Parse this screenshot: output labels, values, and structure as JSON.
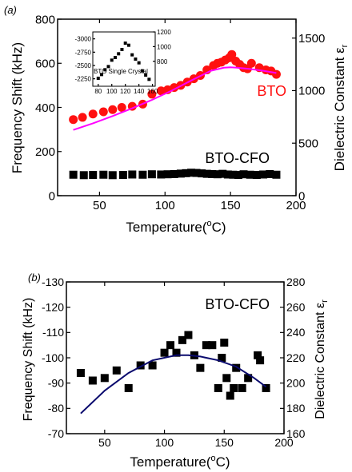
{
  "chart_data": [
    {
      "type": "scatter",
      "panel_label": "(a)",
      "xlabel": "Temperature(°C)",
      "ylabel": "Frequency Shift (kHz)",
      "ylabel_right": "Dielectric Constant ε",
      "ylabel_right_sub": "r",
      "xlim": [
        18,
        200
      ],
      "ylim": [
        0,
        800
      ],
      "ylim_right": [
        0,
        1680
      ],
      "x_ticks": [
        50,
        100,
        150,
        200
      ],
      "y_ticks": [
        0,
        200,
        400,
        600,
        800
      ],
      "y_ticks_right": [
        0,
        500,
        1000,
        1500
      ],
      "annotations": [
        "BTO",
        "BTO-CFO"
      ],
      "series": [
        {
          "name": "BTO",
          "marker": "circle",
          "color": "#ff1010",
          "x": [
            30,
            37,
            45,
            53,
            60,
            67,
            75,
            83,
            90,
            97,
            102,
            107,
            112,
            117,
            122,
            127,
            132,
            137,
            140,
            143,
            146,
            149,
            151,
            154,
            157,
            160,
            163,
            166,
            172,
            177,
            181,
            185
          ],
          "y": [
            345,
            355,
            370,
            380,
            390,
            400,
            405,
            415,
            460,
            475,
            480,
            490,
            500,
            515,
            530,
            545,
            570,
            590,
            600,
            605,
            615,
            625,
            640,
            610,
            595,
            580,
            575,
            600,
            580,
            570,
            565,
            550
          ]
        },
        {
          "name": "BTO fit",
          "color": "#ff00ff",
          "x": [
            30,
            45,
            60,
            75,
            90,
            105,
            120,
            135,
            145,
            150,
            155,
            165,
            175,
            185
          ],
          "y": [
            298,
            328,
            361,
            396,
            434,
            476,
            522,
            566,
            580,
            582,
            580,
            574,
            566,
            556
          ]
        },
        {
          "name": "BTO-CFO",
          "marker": "square",
          "color": "#000000",
          "x": [
            30,
            38,
            45,
            53,
            60,
            68,
            75,
            83,
            90,
            97,
            102,
            107,
            112,
            116,
            120,
            124,
            128,
            132,
            136,
            140,
            144,
            148,
            152,
            156,
            160,
            165,
            170,
            175,
            180,
            185
          ],
          "y": [
            95,
            93,
            94,
            95,
            93,
            94,
            96,
            95,
            97,
            96,
            97,
            98,
            100,
            102,
            104,
            103,
            101,
            99,
            98,
            97,
            99,
            96,
            95,
            94,
            97,
            95,
            94,
            96,
            98,
            95
          ]
        }
      ],
      "inset": {
        "type": "scatter",
        "annotation": "BTO Single Crystal",
        "xlim": [
          72,
          164
        ],
        "ylim": [
          -2110,
          -3130
        ],
        "ylim_right": [
          460,
          1200
        ],
        "x_ticks": [
          80,
          100,
          120,
          140,
          160
        ],
        "y_ticks": [
          -3000,
          -2750,
          -2500,
          -2250
        ],
        "y_ticks_right": [
          800,
          1000,
          1200
        ],
        "series": [
          {
            "name": "BTO Single Crystal",
            "marker": "square",
            "color": "#000000",
            "x": [
              80,
              85,
              90,
              95,
              100,
              105,
              110,
              115,
              120,
              125,
              130,
              135,
              140,
              145,
              150,
              155
            ],
            "y": [
              -2260,
              -2330,
              -2420,
              -2480,
              -2600,
              -2650,
              -2720,
              -2800,
              -2920,
              -2880,
              -2700,
              -2620,
              -2550,
              -2400,
              -2320,
              -2240
            ]
          }
        ]
      }
    },
    {
      "type": "scatter",
      "panel_label": "(b)",
      "xlabel": "Temperature(°C)",
      "ylabel": "Frequency Shift (kHz)",
      "ylabel_right": "Dielectric Constant ε",
      "ylabel_right_sub": "r",
      "xlim": [
        18,
        200
      ],
      "ylim": [
        -70,
        -130
      ],
      "ylim_right": [
        160,
        280
      ],
      "x_ticks": [
        50,
        100,
        150,
        200
      ],
      "y_ticks": [
        -70,
        -80,
        -90,
        -100,
        -110,
        -120,
        -130
      ],
      "y_ticks_right": [
        160,
        180,
        200,
        220,
        240,
        260,
        280
      ],
      "annotations": [
        "BTO-CFO"
      ],
      "series": [
        {
          "name": "BTO-CFO",
          "marker": "square",
          "color": "#000000",
          "x": [
            30,
            40,
            50,
            60,
            70,
            80,
            90,
            100,
            105,
            110,
            115,
            120,
            125,
            130,
            135,
            140,
            145,
            148,
            150,
            152,
            155,
            158,
            160,
            165,
            170,
            178,
            180,
            185
          ],
          "y": [
            -94,
            -91,
            -92,
            -95,
            -88,
            -97,
            -97,
            -102,
            -105,
            -102,
            -107,
            -109,
            -101,
            -96,
            -105,
            -105,
            -88,
            -100,
            -106,
            -92,
            -85,
            -88,
            -96,
            -88,
            -92,
            -101,
            -99,
            -88
          ],
          "values_right": [
            208,
            202,
            204,
            210,
            196,
            214,
            214,
            224,
            230,
            224,
            234,
            238,
            222,
            212,
            230,
            230,
            196,
            220,
            232,
            204,
            190,
            196,
            212,
            196,
            204,
            222,
            218,
            196
          ]
        },
        {
          "name": "BTO-CFO fit",
          "color": "#0a0a6e",
          "x": [
            30,
            50,
            70,
            90,
            110,
            120,
            130,
            145,
            160,
            175,
            185
          ],
          "y": [
            -78,
            -87,
            -94,
            -99,
            -101,
            -101,
            -100.5,
            -99,
            -96.5,
            -92,
            -88.5
          ]
        }
      ]
    }
  ]
}
